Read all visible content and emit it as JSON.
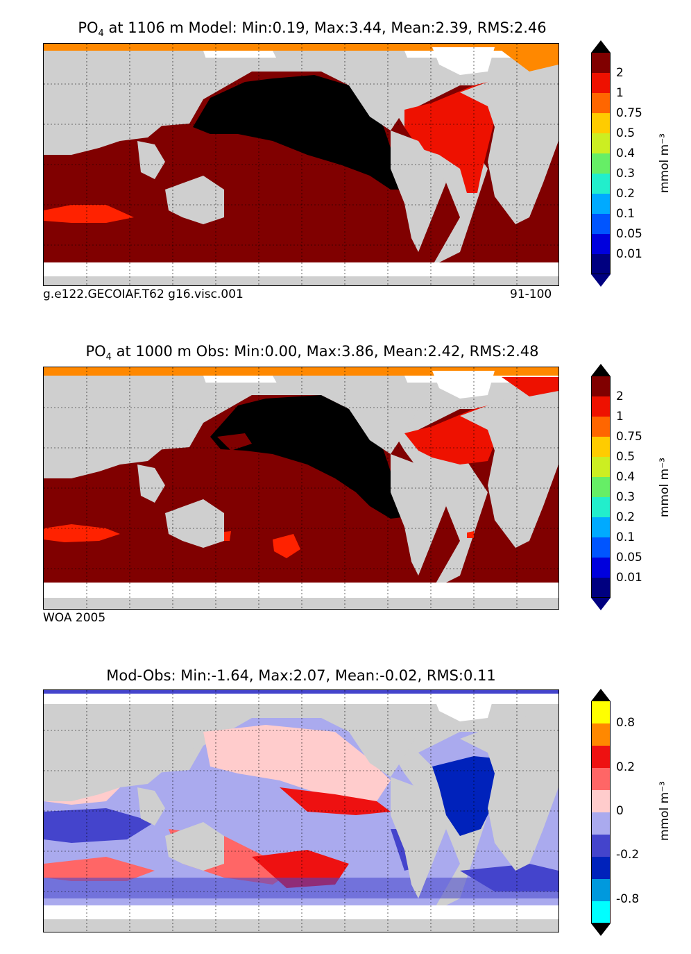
{
  "panels": [
    {
      "title_prefix": "PO",
      "title_sub": "4",
      "title_rest": "  at 1106 m Model: Min:0.19, Max:3.44, Mean:2.39, RMS:2.46",
      "footer_left": "g.e122.GECOIAF.T62 g16.visc.001",
      "footer_right": "91-100",
      "unit": "mmol m⁻³",
      "colorbar_labels": [
        "2",
        "1",
        "0.75",
        "0.5",
        "0.4",
        "0.3",
        "0.2",
        "0.1",
        "0.05",
        "0.01"
      ]
    },
    {
      "title_prefix": "PO",
      "title_sub": "4",
      "title_rest": "  at 1000 m Obs: Min:0.00, Max:3.86, Mean:2.42, RMS:2.48",
      "footer_left": "WOA 2005",
      "footer_right": "",
      "unit": "mmol m⁻³",
      "colorbar_labels": [
        "2",
        "1",
        "0.75",
        "0.5",
        "0.4",
        "0.3",
        "0.2",
        "0.1",
        "0.05",
        "0.01"
      ]
    },
    {
      "title_text": "Mod-Obs: Min:-1.64, Max:2.07, Mean:-0.02, RMS:0.11",
      "unit": "mmol m⁻³",
      "colorbar_labels": [
        "0.8",
        "0.2",
        "0",
        "-0.2",
        "-0.8"
      ]
    }
  ],
  "colors": {
    "land": "#cfcfcf",
    "ice": "#ffffff",
    "po4_scale": [
      "#000080",
      "#0000cd",
      "#0000ff",
      "#0066ff",
      "#00aaff",
      "#22eecc",
      "#66ee66",
      "#ccee22",
      "#ffcc00",
      "#ff8800",
      "#ff2200",
      "#cc0000",
      "#800000",
      "#000000"
    ],
    "diff_scale": [
      "#00ffff",
      "#0099dd",
      "#0022bb",
      "#4444cc",
      "#aaaaee",
      "#ffcccc",
      "#ff6666",
      "#ee1111",
      "#ff8800",
      "#ffff00"
    ]
  }
}
